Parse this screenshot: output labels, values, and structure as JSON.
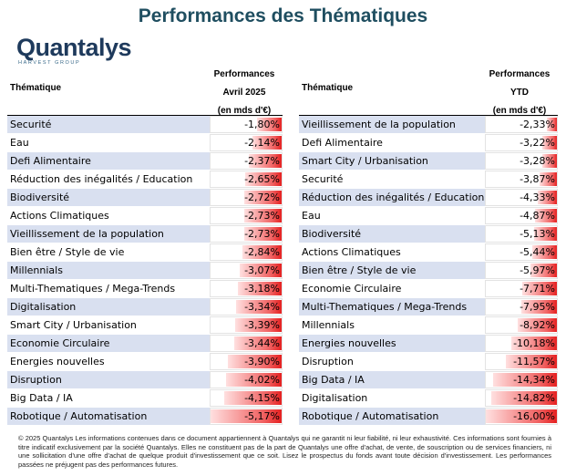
{
  "title": "Performances des Thématiques",
  "logo": {
    "name": "Quantalys",
    "tagline": "HARVEST GROUP"
  },
  "left_table": {
    "col_title": "Thématique",
    "perf_line1": "Performances",
    "perf_line2": "Avril 2025",
    "perf_line3": "(en mds d'€)",
    "rows": [
      {
        "name": "Securité",
        "value": "-1,80%",
        "pct": 1.8
      },
      {
        "name": "Eau",
        "value": "-2,14%",
        "pct": 2.14
      },
      {
        "name": "Defi Alimentaire",
        "value": "-2,37%",
        "pct": 2.37
      },
      {
        "name": "Réduction des inégalités / Education",
        "value": "-2,65%",
        "pct": 2.65
      },
      {
        "name": "Biodiversité",
        "value": "-2,72%",
        "pct": 2.72
      },
      {
        "name": "Actions Climatiques",
        "value": "-2,73%",
        "pct": 2.73
      },
      {
        "name": "Vieillissement de la population",
        "value": "-2,73%",
        "pct": 2.73
      },
      {
        "name": "Bien être / Style de vie",
        "value": "-2,84%",
        "pct": 2.84
      },
      {
        "name": "Millennials",
        "value": "-3,07%",
        "pct": 3.07
      },
      {
        "name": "Multi-Thematiques / Mega-Trends",
        "value": "-3,18%",
        "pct": 3.18
      },
      {
        "name": "Digitalisation",
        "value": "-3,34%",
        "pct": 3.34
      },
      {
        "name": "Smart City / Urbanisation",
        "value": "-3,39%",
        "pct": 3.39
      },
      {
        "name": "Economie Circulaire",
        "value": "-3,44%",
        "pct": 3.44
      },
      {
        "name": "Energies nouvelles",
        "value": "-3,90%",
        "pct": 3.9
      },
      {
        "name": "Disruption",
        "value": "-4,02%",
        "pct": 4.02
      },
      {
        "name": "Big Data / IA",
        "value": "-4,15%",
        "pct": 4.15
      },
      {
        "name": "Robotique / Automatisation",
        "value": "-5,17%",
        "pct": 5.17
      }
    ]
  },
  "right_table": {
    "col_title": "Thématique",
    "perf_line1": "Performances",
    "perf_line2": "YTD",
    "perf_line3": "(en mds d'€)",
    "rows": [
      {
        "name": "Vieillissement de la population",
        "value": "-2,33%",
        "pct": 2.33
      },
      {
        "name": "Defi Alimentaire",
        "value": "-3,22%",
        "pct": 3.22
      },
      {
        "name": "Smart City / Urbanisation",
        "value": "-3,28%",
        "pct": 3.28
      },
      {
        "name": "Securité",
        "value": "-3,87%",
        "pct": 3.87
      },
      {
        "name": "Réduction des inégalités / Education",
        "value": "-4,33%",
        "pct": 4.33
      },
      {
        "name": "Eau",
        "value": "-4,87%",
        "pct": 4.87
      },
      {
        "name": "Biodiversité",
        "value": "-5,13%",
        "pct": 5.13
      },
      {
        "name": "Actions Climatiques",
        "value": "-5,44%",
        "pct": 5.44
      },
      {
        "name": "Bien être / Style de vie",
        "value": "-5,97%",
        "pct": 5.97
      },
      {
        "name": "Economie Circulaire",
        "value": "-7,71%",
        "pct": 7.71
      },
      {
        "name": "Multi-Thematiques / Mega-Trends",
        "value": "-7,95%",
        "pct": 7.95
      },
      {
        "name": "Millennials",
        "value": "-8,92%",
        "pct": 8.92
      },
      {
        "name": "Energies nouvelles",
        "value": "-10,18%",
        "pct": 10.18
      },
      {
        "name": "Disruption",
        "value": "-11,57%",
        "pct": 11.57
      },
      {
        "name": "Big Data / IA",
        "value": "-14,34%",
        "pct": 14.34
      },
      {
        "name": "Digitalisation",
        "value": "-14,82%",
        "pct": 14.82
      },
      {
        "name": "Robotique / Automatisation",
        "value": "-16,00%",
        "pct": 16.0
      }
    ]
  },
  "footer": "© 2025 Quantalys Les informations contenues dans ce document appartiennent à Quantalys qui ne garantit ni leur fiabilité, ni leur exhaustivité. Ces informations sont fournies à titre indicatif exclusivement par la société Quantalys. Elles ne constituent pas de la part de Quantalys une offre d'achat, de vente, de souscription ou de services financiers, ni une sollicitation d'une offre d'achat de quelque produit d'investissement que ce soit. Lisez le prospectus du fonds avant toute décision d'investissement. Les performances passées ne préjugent pas des performances futures."
}
